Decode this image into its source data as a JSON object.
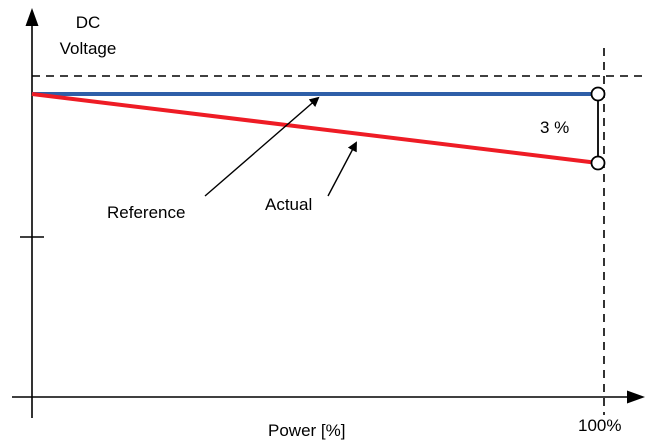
{
  "axes": {
    "y_label_line1": "DC",
    "y_label_line2": "Voltage",
    "x_label": "Power [%]",
    "x_end_label": "100%"
  },
  "annotations": {
    "reference": "Reference",
    "actual": "Actual",
    "difference": "3  %"
  },
  "colors": {
    "reference": "#2e5fa8",
    "actual": "#ee1c25",
    "axis": "#000000"
  }
}
